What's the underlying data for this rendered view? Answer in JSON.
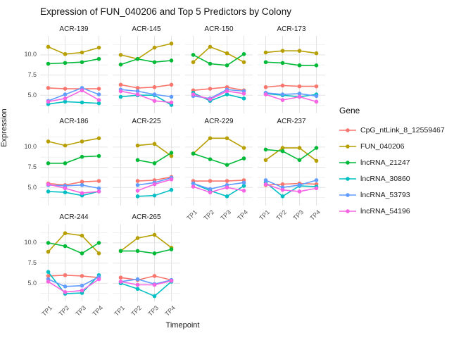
{
  "ui": {
    "title": "Expression of FUN_040206 and Top 5 Predictors by Colony",
    "xlabel": "Timepoint",
    "ylabel": "Expression",
    "legend_title": "Gene"
  },
  "chart_data": {
    "type": "line",
    "title": "Expression of FUN_040206 and Top 5 Predictors by Colony",
    "xlabel": "Timepoint",
    "ylabel": "Expression",
    "x": [
      "TP1",
      "TP2",
      "TP3",
      "TP4"
    ],
    "ylim": [
      2.75,
      12.35
    ],
    "yticks": [
      10.0,
      7.5,
      5.0
    ],
    "yminor": [
      3.75,
      6.25,
      8.75,
      11.25
    ],
    "grid": true,
    "legend_position": "right",
    "legend_title": "Gene",
    "series": [
      {
        "name": "CpG_ntLink_8_12559467",
        "color": "#F8766D"
      },
      {
        "name": "FUN_040206",
        "color": "#B79F00"
      },
      {
        "name": "lncRNA_21247",
        "color": "#00BA38"
      },
      {
        "name": "lncRNA_30860",
        "color": "#00BFC4"
      },
      {
        "name": "lncRNA_53793",
        "color": "#619CFF"
      },
      {
        "name": "lncRNA_54196",
        "color": "#F564E3"
      }
    ],
    "facets": [
      {
        "colony": "ACR-139",
        "values": {
          "CpG_ntLink_8_12559467": [
            5.9,
            5.8,
            5.8,
            5.8
          ],
          "FUN_040206": [
            11.0,
            10.1,
            10.3,
            10.9
          ],
          "lncRNA_21247": [
            8.9,
            9.0,
            9.1,
            9.5
          ],
          "lncRNA_30860": [
            3.9,
            4.2,
            4.1,
            4.0
          ],
          "lncRNA_53793": [
            4.3,
            5.1,
            5.9,
            5.1
          ],
          "lncRNA_54196": [
            4.2,
            4.6,
            5.6,
            4.4
          ]
        }
      },
      {
        "colony": "ACR-145",
        "values": {
          "CpG_ntLink_8_12559467": [
            6.3,
            5.9,
            6.0,
            6.3
          ],
          "FUN_040206": [
            10.0,
            9.5,
            10.9,
            11.4
          ],
          "lncRNA_21247": [
            8.8,
            9.5,
            9.1,
            9.3
          ],
          "lncRNA_30860": [
            4.8,
            5.0,
            5.0,
            3.8
          ],
          "lncRNA_53793": [
            5.7,
            5.5,
            5.1,
            4.8
          ],
          "lncRNA_54196": [
            5.5,
            5.1,
            4.3,
            4.1
          ]
        }
      },
      {
        "colony": "ACR-150",
        "values": {
          "CpG_ntLink_8_12559467": [
            5.6,
            5.8,
            6.0,
            5.6
          ],
          "FUN_040206": [
            9.1,
            11.0,
            10.2,
            9.1
          ],
          "lncRNA_21247": [
            10.0,
            8.9,
            8.7,
            10.1
          ],
          "lncRNA_30860": [
            5.3,
            4.3,
            5.1,
            4.6
          ],
          "lncRNA_53793": [
            4.9,
            4.6,
            5.7,
            5.5
          ],
          "lncRNA_54196": [
            5.1,
            4.5,
            5.5,
            5.2
          ]
        }
      },
      {
        "colony": "ACR-173",
        "values": {
          "CpG_ntLink_8_12559467": [
            6.0,
            6.2,
            6.1,
            6.1
          ],
          "FUN_040206": [
            10.3,
            10.5,
            10.5,
            10.2
          ],
          "lncRNA_21247": [
            9.1,
            9.0,
            8.7,
            8.7
          ],
          "lncRNA_30860": [
            5.2,
            5.0,
            4.8,
            5.1
          ],
          "lncRNA_53793": [
            5.3,
            5.1,
            5.2,
            4.9
          ],
          "lncRNA_54196": [
            5.1,
            4.4,
            4.8,
            4.2
          ]
        }
      },
      {
        "colony": "ACR-186",
        "values": {
          "CpG_ntLink_8_12559467": [
            5.5,
            5.3,
            5.7,
            5.8
          ],
          "FUN_040206": [
            10.7,
            10.2,
            10.7,
            11.1
          ],
          "lncRNA_21247": [
            8.0,
            8.0,
            8.8,
            8.9
          ],
          "lncRNA_30860": [
            4.5,
            4.4,
            4.0,
            4.5
          ],
          "lncRNA_53793": [
            5.3,
            5.2,
            5.3,
            4.9
          ],
          "lncRNA_54196": [
            5.4,
            4.9,
            4.3,
            4.5
          ]
        }
      },
      {
        "colony": "ACR-225",
        "values": {
          "CpG_ntLink_8_12559467": [
            null,
            5.8,
            5.9,
            6.3
          ],
          "FUN_040206": [
            null,
            10.2,
            10.4,
            8.9
          ],
          "lncRNA_21247": [
            null,
            8.4,
            8.0,
            9.3
          ],
          "lncRNA_30860": [
            null,
            3.9,
            4.0,
            4.7
          ],
          "lncRNA_53793": [
            null,
            5.3,
            5.6,
            6.2
          ],
          "lncRNA_54196": [
            null,
            4.6,
            5.4,
            6.0
          ]
        }
      },
      {
        "colony": "ACR-229",
        "values": {
          "CpG_ntLink_8_12559467": [
            5.8,
            5.8,
            5.8,
            5.9
          ],
          "FUN_040206": [
            9.2,
            11.1,
            11.1,
            9.9
          ],
          "lncRNA_21247": [
            9.2,
            8.5,
            7.8,
            8.6
          ],
          "lncRNA_30860": [
            5.5,
            4.6,
            3.9,
            5.2
          ],
          "lncRNA_53793": [
            5.5,
            4.8,
            5.3,
            5.6
          ],
          "lncRNA_54196": [
            5.1,
            4.4,
            5.0,
            4.6
          ]
        }
      },
      {
        "colony": "ACR-237",
        "values": {
          "CpG_ntLink_8_12559467": [
            5.3,
            5.4,
            5.5,
            5.4
          ],
          "FUN_040206": [
            8.4,
            9.9,
            9.9,
            8.3
          ],
          "lncRNA_21247": [
            9.7,
            9.5,
            8.4,
            9.9
          ],
          "lncRNA_30860": [
            5.6,
            3.9,
            5.2,
            5.1
          ],
          "lncRNA_53793": [
            5.9,
            5.0,
            5.3,
            5.9
          ],
          "lncRNA_54196": [
            5.4,
            4.7,
            4.5,
            4.9
          ]
        }
      },
      {
        "colony": "ACR-244",
        "values": {
          "CpG_ntLink_8_12559467": [
            5.9,
            6.0,
            5.9,
            5.7
          ],
          "FUN_040206": [
            8.9,
            11.2,
            10.9,
            8.7
          ],
          "lncRNA_21247": [
            10.0,
            9.6,
            8.7,
            10.0
          ],
          "lncRNA_30860": [
            6.4,
            3.7,
            3.8,
            6.0
          ],
          "lncRNA_53793": [
            5.5,
            4.6,
            4.7,
            5.8
          ],
          "lncRNA_54196": [
            5.2,
            3.9,
            4.1,
            5.5
          ]
        }
      },
      {
        "colony": "ACR-265",
        "values": {
          "CpG_ntLink_8_12559467": [
            5.7,
            5.4,
            5.9,
            5.4
          ],
          "FUN_040206": [
            9.0,
            10.6,
            11.0,
            9.4
          ],
          "lncRNA_21247": [
            9.0,
            9.0,
            8.7,
            9.2
          ],
          "lncRNA_30860": [
            5.0,
            4.3,
            3.4,
            5.2
          ],
          "lncRNA_53793": [
            5.2,
            5.5,
            4.9,
            5.4
          ],
          "lncRNA_54196": [
            5.2,
            4.8,
            4.8,
            5.3
          ]
        }
      }
    ]
  },
  "colors": {
    "grid_major": "#e3e3e3",
    "grid_minor": "#f1f1f1",
    "axis_text": "#4d4d4d"
  }
}
